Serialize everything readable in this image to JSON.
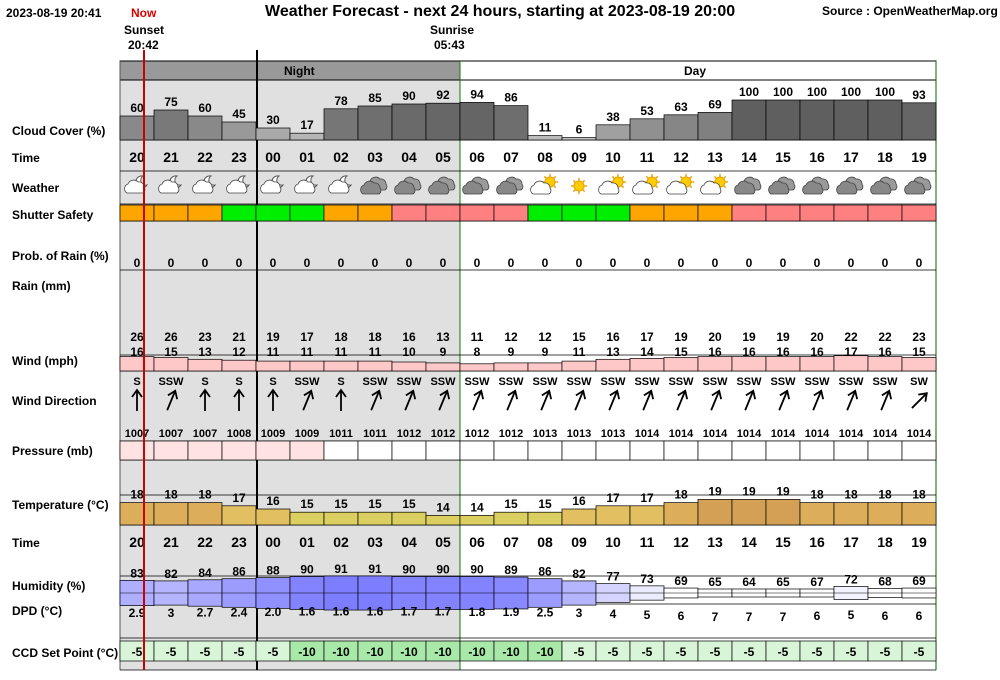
{
  "header": {
    "timestamp": "2023-08-19 20:41",
    "now_label": "Now",
    "title": "Weather Forecast - next 24 hours, starting at 2023-08-19 20:00",
    "source": "Source : OpenWeatherMap.org",
    "sunset_label": "Sunset",
    "sunset_time": "20:42",
    "sunrise_label": "Sunrise",
    "sunrise_time": "05:43",
    "night_label": "Night",
    "day_label": "Day"
  },
  "row_labels": {
    "cloud": "Cloud Cover (%)",
    "time": "Time",
    "weather": "Weather",
    "shutter": "Shutter Safety",
    "prob_rain": "Prob. of Rain (%)",
    "rain": "Rain (mm)",
    "wind": "Wind (mph)",
    "wind_dir": "Wind Direction",
    "pressure": "Pressure (mb)",
    "temperature": "Temperature (°C)",
    "time2": "Time",
    "humidity": "Humidity (%)",
    "dpd": "DPD (°C)",
    "ccd": "CCD Set Point (°C)"
  },
  "colors": {
    "shutter_orange": "#ffa500",
    "shutter_green": "#00ee00",
    "shutter_red": "#ff8080",
    "ccd_light": "#d8f5d8",
    "ccd_dark": "#a8e8a8",
    "now_line": "#cc0000",
    "night_bg": "#e0e0e0"
  },
  "forecast": {
    "hours": [
      "20",
      "21",
      "22",
      "23",
      "00",
      "01",
      "02",
      "03",
      "04",
      "05",
      "06",
      "07",
      "08",
      "09",
      "10",
      "11",
      "12",
      "13",
      "14",
      "15",
      "16",
      "17",
      "18",
      "19"
    ],
    "cloud_cover": [
      60,
      75,
      60,
      45,
      30,
      17,
      78,
      85,
      90,
      92,
      94,
      86,
      11,
      6,
      38,
      53,
      63,
      69,
      100,
      100,
      100,
      100,
      100,
      93
    ],
    "weather_icon": [
      "partly-cloudy-night-icon",
      "partly-cloudy-night-icon",
      "partly-cloudy-night-icon",
      "partly-cloudy-night-icon",
      "partly-cloudy-night-icon",
      "partly-cloudy-night-icon",
      "partly-cloudy-night-icon",
      "overcast-icon",
      "overcast-icon",
      "overcast-icon",
      "overcast-icon",
      "overcast-icon",
      "partly-sunny-icon",
      "sun-icon",
      "partly-sunny-icon",
      "partly-sunny-icon",
      "partly-sunny-icon",
      "partly-sunny-icon",
      "overcast-icon",
      "overcast-icon",
      "overcast-icon",
      "overcast-icon",
      "overcast-icon",
      "overcast-icon"
    ],
    "shutter_safety": [
      "orange",
      "orange",
      "orange",
      "green",
      "green",
      "green",
      "orange",
      "orange",
      "red",
      "red",
      "red",
      "red",
      "green",
      "green",
      "green",
      "orange",
      "orange",
      "orange",
      "red",
      "red",
      "red",
      "red",
      "red",
      "red"
    ],
    "prob_rain": [
      0,
      0,
      0,
      0,
      0,
      0,
      0,
      0,
      0,
      0,
      0,
      0,
      0,
      0,
      0,
      0,
      0,
      0,
      0,
      0,
      0,
      0,
      0,
      0
    ],
    "wind_gust": [
      26,
      26,
      23,
      21,
      19,
      17,
      18,
      18,
      16,
      13,
      11,
      12,
      12,
      15,
      16,
      17,
      19,
      20,
      19,
      19,
      20,
      22,
      22,
      23
    ],
    "wind_speed": [
      16,
      15,
      13,
      12,
      11,
      11,
      11,
      11,
      10,
      9,
      8,
      9,
      9,
      11,
      13,
      14,
      15,
      16,
      16,
      16,
      16,
      17,
      16,
      15
    ],
    "wind_dir": [
      "S",
      "SSW",
      "S",
      "S",
      "S",
      "SSW",
      "S",
      "SSW",
      "SSW",
      "SSW",
      "SSW",
      "SSW",
      "SSW",
      "SSW",
      "SSW",
      "SSW",
      "SSW",
      "SSW",
      "SSW",
      "SSW",
      "SSW",
      "SSW",
      "SSW",
      "SW"
    ],
    "pressure": [
      1007,
      1007,
      1007,
      1008,
      1009,
      1009,
      1011,
      1011,
      1012,
      1012,
      1012,
      1012,
      1013,
      1013,
      1013,
      1014,
      1014,
      1014,
      1014,
      1014,
      1014,
      1014,
      1014,
      1014
    ],
    "temperature": [
      18,
      18,
      18,
      17,
      16,
      15,
      15,
      15,
      15,
      14,
      14,
      15,
      15,
      16,
      17,
      17,
      18,
      19,
      19,
      19,
      18,
      18,
      18,
      18
    ],
    "humidity": [
      83,
      82,
      84,
      86,
      88,
      90,
      91,
      91,
      90,
      90,
      90,
      89,
      86,
      82,
      77,
      73,
      69,
      65,
      64,
      65,
      67,
      72,
      68,
      69
    ],
    "dpd": [
      "2.9",
      "3",
      "2.7",
      "2.4",
      "2.0",
      "1.6",
      "1.6",
      "1.6",
      "1.7",
      "1.7",
      "1.8",
      "1.9",
      "2.5",
      "3",
      "4",
      "5",
      "6",
      "7",
      "7",
      "7",
      "6",
      "5",
      "6",
      "6"
    ],
    "ccd_set_point": [
      -5,
      -5,
      -5,
      -5,
      -5,
      -10,
      -10,
      -10,
      -10,
      -10,
      -10,
      -10,
      -10,
      -5,
      -5,
      -5,
      -5,
      -5,
      -5,
      -5,
      -5,
      -5,
      -5,
      -5
    ]
  }
}
